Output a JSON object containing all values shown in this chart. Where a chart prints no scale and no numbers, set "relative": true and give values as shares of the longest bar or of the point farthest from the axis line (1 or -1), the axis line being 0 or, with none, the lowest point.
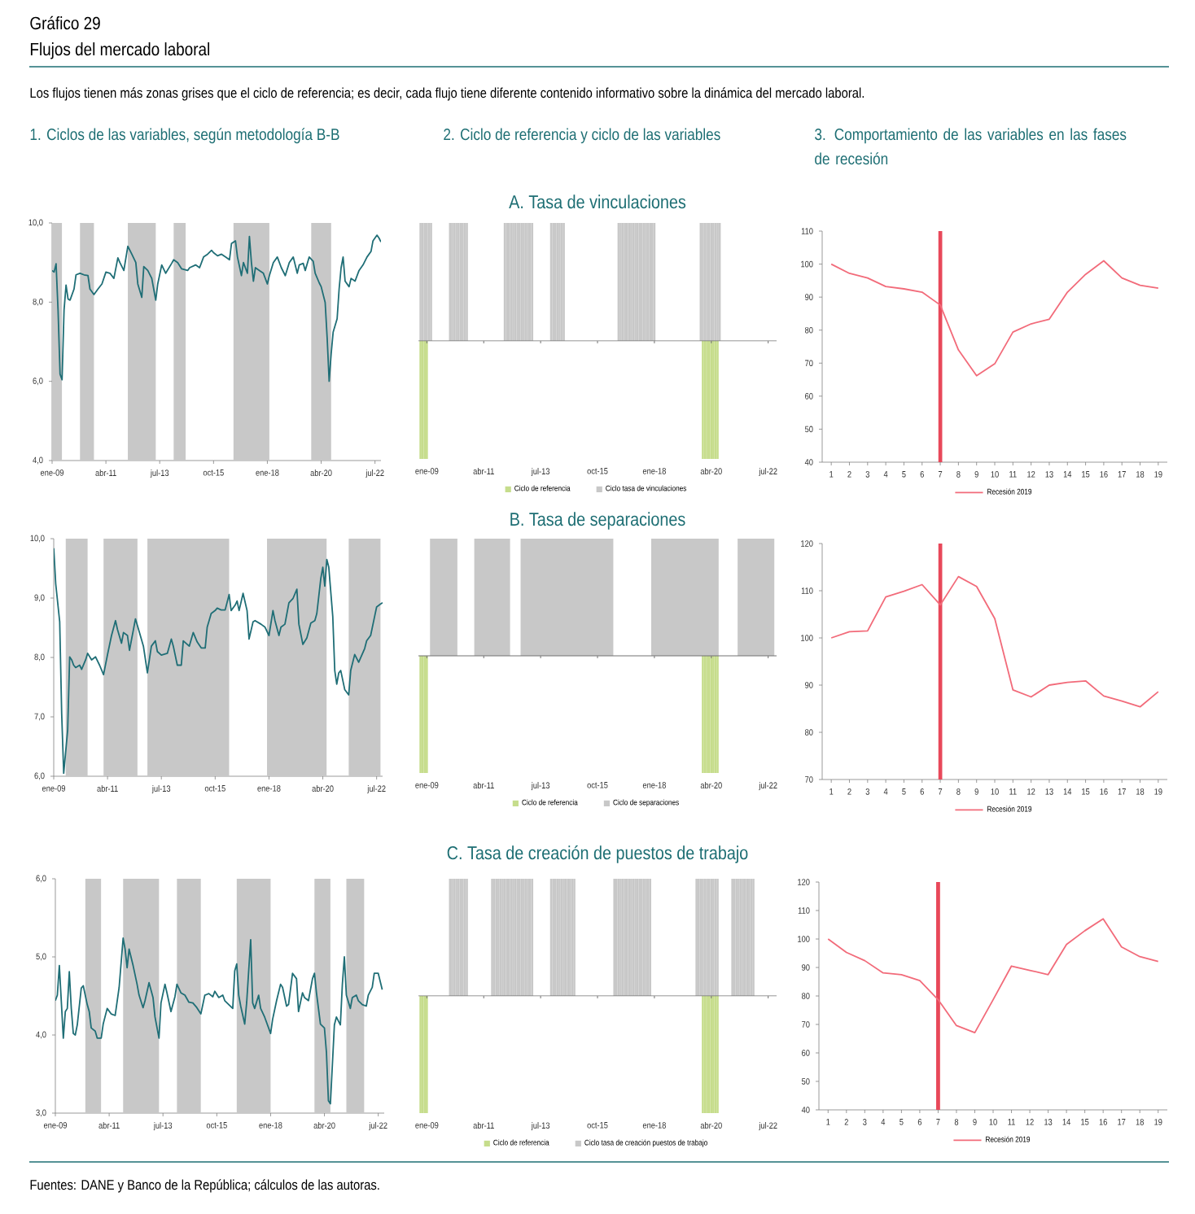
{
  "chart_data": [
    {
      "type": "other",
      "title": "Gráfico 29",
      "subtitle": "Flujos del mercado laboral",
      "annotations": [
        "Los flujos tienen más zonas grises que el ciclo de referencia; es decir, cada flujo tiene diferente contenido informativo sobre la dinámica del mercado laboral.",
        "Fuentes: DANE y Banco de la República; cálculos de las autoras."
      ]
    },
    {
      "type": "line",
      "title": "1. Ciclos de las variables, según metodología B-B",
      "color": "#1f6e76",
      "xlim": [
        "2009-01",
        "2022-10"
      ],
      "ylim": [
        4,
        10
      ],
      "xticks": [
        {
          "value": "2009-01",
          "label": "ene-09"
        },
        {
          "value": "2011-04",
          "label": "abr-11"
        },
        {
          "value": "2013-07",
          "label": "jul-13"
        },
        {
          "value": "2015-10",
          "label": "oct-15"
        },
        {
          "value": "2018-01",
          "label": "ene-18"
        },
        {
          "value": "2020-04",
          "label": "abr-20"
        },
        {
          "value": "2022-07",
          "label": "jul-22"
        }
      ],
      "yticks": [
        {
          "value": 4,
          "label": "4,0"
        },
        {
          "value": 6,
          "label": "6,0"
        },
        {
          "value": 8,
          "label": "8,0"
        },
        {
          "value": 10,
          "label": "10,0"
        }
      ],
      "bands": [
        {
          "axis": "x",
          "from": "2009-01",
          "to": "2009-06",
          "color": "#c8c8c8"
        },
        {
          "axis": "x",
          "from": "2010-03",
          "to": "2010-10",
          "color": "#c8c8c8"
        },
        {
          "axis": "x",
          "from": "2012-03",
          "to": "2013-05",
          "color": "#c8c8c8"
        },
        {
          "axis": "x",
          "from": "2014-02",
          "to": "2014-08",
          "color": "#c8c8c8"
        },
        {
          "axis": "x",
          "from": "2016-08",
          "to": "2018-02",
          "color": "#c8c8c8"
        },
        {
          "axis": "x",
          "from": "2019-11",
          "to": "2020-09",
          "color": "#c8c8c8"
        }
      ],
      "x": [
        "2009-01",
        "2009-02",
        "2009-03",
        "2009-04",
        "2009-05",
        "2009-06",
        "2009-07",
        "2009-08",
        "2009-09",
        "2009-10",
        "2009-12",
        "2010-01",
        "2010-03",
        "2010-05",
        "2010-07",
        "2010-08",
        "2010-10",
        "2010-12",
        "2011-02",
        "2011-04",
        "2011-06",
        "2011-08",
        "2011-10",
        "2011-11",
        "2012-01",
        "2012-03",
        "2012-05",
        "2012-07",
        "2012-08",
        "2012-10",
        "2012-11",
        "2013-01",
        "2013-03",
        "2013-05",
        "2013-06",
        "2013-08",
        "2013-10",
        "2014-01",
        "2014-02",
        "2014-04",
        "2014-06",
        "2014-09",
        "2014-10",
        "2015-01",
        "2015-03",
        "2015-05",
        "2015-07",
        "2015-09",
        "2015-10",
        "2015-12",
        "2016-02",
        "2016-04",
        "2016-06",
        "2016-07",
        "2016-09",
        "2016-10",
        "2016-12",
        "2017-01",
        "2017-03",
        "2017-04",
        "2017-05",
        "2017-06",
        "2017-07",
        "2017-09",
        "2017-11",
        "2018-01",
        "2018-02",
        "2018-04",
        "2018-06",
        "2018-08",
        "2018-10",
        "2018-12",
        "2019-02",
        "2019-04",
        "2019-05",
        "2019-07",
        "2019-08",
        "2019-10",
        "2019-12",
        "2020-01",
        "2020-03",
        "2020-04",
        "2020-06",
        "2020-07",
        "2020-08",
        "2020-09",
        "2020-10",
        "2020-12",
        "2021-01",
        "2021-02",
        "2021-03",
        "2021-04",
        "2021-06",
        "2021-07",
        "2021-09",
        "2021-11",
        "2022-01",
        "2022-03",
        "2022-05",
        "2022-06",
        "2022-08",
        "2022-09",
        "2022-10"
      ],
      "values": [
        8.8,
        8.76,
        8.97,
        7.78,
        6.18,
        6.04,
        7.8,
        8.43,
        8.08,
        8.05,
        8.33,
        8.69,
        8.73,
        8.69,
        8.67,
        8.33,
        8.19,
        8.33,
        8.46,
        8.76,
        8.73,
        8.6,
        9.12,
        9.0,
        8.8,
        9.41,
        9.21,
        9.0,
        8.46,
        8.12,
        8.9,
        8.8,
        8.6,
        8.05,
        8.46,
        8.94,
        8.73,
        8.98,
        9.07,
        9.0,
        8.84,
        8.8,
        8.87,
        8.94,
        8.87,
        9.14,
        9.21,
        9.31,
        9.25,
        9.17,
        9.21,
        9.14,
        9.07,
        9.48,
        9.55,
        9.14,
        8.67,
        9.0,
        8.73,
        9.66,
        9.0,
        8.53,
        8.87,
        8.8,
        8.73,
        8.46,
        8.67,
        9.0,
        9.14,
        8.87,
        8.67,
        9.0,
        9.14,
        8.73,
        8.94,
        8.98,
        8.8,
        9.14,
        9.03,
        8.73,
        8.49,
        8.39,
        7.99,
        7.1,
        6.0,
        6.69,
        7.24,
        7.58,
        8.33,
        8.87,
        9.14,
        8.53,
        8.39,
        8.6,
        8.53,
        8.8,
        8.94,
        9.14,
        9.28,
        9.55,
        9.69,
        9.62,
        9.52
      ]
    },
    {
      "type": "bar",
      "title": "2. Ciclo de referencia y ciclo de las variables",
      "subtitle": "A. Tasa de vinculaciones",
      "relative": true,
      "legend": "bottom",
      "xlim": [
        "2008-09",
        "2022-11"
      ],
      "xticks": [
        {
          "value": "2009-01",
          "label": "ene-09"
        },
        {
          "value": "2011-04",
          "label": "abr-11"
        },
        {
          "value": "2013-07",
          "label": "jul-13"
        },
        {
          "value": "2015-10",
          "label": "oct-15"
        },
        {
          "value": "2018-01",
          "label": "ene-18"
        },
        {
          "value": "2020-04",
          "label": "abr-20"
        },
        {
          "value": "2022-07",
          "label": "jul-22"
        }
      ],
      "series": [
        {
          "name": "Ciclo de referencia",
          "color": "#c6dd8c",
          "x": [
            "2008-10",
            "2008-11",
            "2008-12",
            "2009-01",
            "2019-12",
            "2020-01",
            "2020-02",
            "2020-03",
            "2020-04",
            "2020-05",
            "2020-06",
            "2020-07"
          ],
          "values": [
            -1,
            -1,
            -1,
            -1,
            -1,
            -1,
            -1,
            -1,
            -1,
            -1,
            -1,
            -1
          ]
        },
        {
          "name": "Ciclo tasa de vinculaciones",
          "color": "#c8c8c8",
          "x": [
            "2008-10",
            "2008-11",
            "2008-12",
            "2009-01",
            "2009-02",
            "2009-03",
            "2009-12",
            "2010-01",
            "2010-02",
            "2010-03",
            "2010-04",
            "2010-05",
            "2010-06",
            "2010-07",
            "2010-08",
            "2012-02",
            "2012-03",
            "2012-04",
            "2012-05",
            "2012-06",
            "2012-07",
            "2012-08",
            "2012-09",
            "2012-10",
            "2012-11",
            "2012-12",
            "2013-01",
            "2013-02",
            "2013-03",
            "2013-12",
            "2014-01",
            "2014-02",
            "2014-03",
            "2014-04",
            "2014-05",
            "2014-06",
            "2016-08",
            "2016-09",
            "2016-10",
            "2016-11",
            "2016-12",
            "2017-01",
            "2017-02",
            "2017-03",
            "2017-04",
            "2017-05",
            "2017-06",
            "2017-07",
            "2017-08",
            "2017-09",
            "2017-10",
            "2017-11",
            "2017-12",
            "2018-01",
            "2019-11",
            "2019-12",
            "2020-01",
            "2020-02",
            "2020-03",
            "2020-04",
            "2020-05",
            "2020-06",
            "2020-07",
            "2020-08"
          ],
          "values": [
            1,
            1,
            1,
            1,
            1,
            1,
            1,
            1,
            1,
            1,
            1,
            1,
            1,
            1,
            1,
            1,
            1,
            1,
            1,
            1,
            1,
            1,
            1,
            1,
            1,
            1,
            1,
            1,
            1,
            1,
            1,
            1,
            1,
            1,
            1,
            1,
            1,
            1,
            1,
            1,
            1,
            1,
            1,
            1,
            1,
            1,
            1,
            1,
            1,
            1,
            1,
            1,
            1,
            1,
            1,
            1,
            1,
            1,
            1,
            1,
            1,
            1,
            1,
            1
          ]
        }
      ]
    },
    {
      "type": "line",
      "title": "3. Comportamiento de las variables en las fases de recesión",
      "legend": "bottom",
      "x": [
        1,
        2,
        3,
        4,
        5,
        6,
        7,
        8,
        9,
        10,
        11,
        12,
        13,
        14,
        15,
        16,
        17,
        18,
        19
      ],
      "xlim": [
        0.5,
        19.5
      ],
      "xticks": [
        1,
        2,
        3,
        4,
        5,
        6,
        7,
        8,
        9,
        10,
        11,
        12,
        13,
        14,
        15,
        16,
        17,
        18,
        19
      ],
      "ylim": [
        40,
        110
      ],
      "yticks": [
        40,
        50,
        60,
        70,
        80,
        90,
        100,
        110
      ],
      "ref_lines": [
        {
          "axis": "x",
          "value": 7,
          "color": "#e8485a"
        }
      ],
      "series": [
        {
          "name": "Recesión 2019",
          "color": "#f26b7a",
          "values": [
            100,
            97.2,
            95.8,
            93.2,
            92.5,
            91.5,
            87.6,
            74.0,
            66.2,
            69.8,
            79.4,
            81.9,
            83.3,
            91.5,
            96.9,
            101.0,
            95.8,
            93.6,
            92.7
          ]
        }
      ]
    },
    {
      "type": "line",
      "color": "#1f6e76",
      "xlim": [
        "2009-01",
        "2022-10"
      ],
      "ylim": [
        6,
        10
      ],
      "xticks": [
        {
          "value": "2009-01",
          "label": "ene-09"
        },
        {
          "value": "2011-04",
          "label": "abr-11"
        },
        {
          "value": "2013-07",
          "label": "jul-13"
        },
        {
          "value": "2015-10",
          "label": "oct-15"
        },
        {
          "value": "2018-01",
          "label": "ene-18"
        },
        {
          "value": "2020-04",
          "label": "abr-20"
        },
        {
          "value": "2022-07",
          "label": "jul-22"
        }
      ],
      "yticks": [
        {
          "value": 6,
          "label": "6,0"
        },
        {
          "value": 7,
          "label": "7,0"
        },
        {
          "value": 8,
          "label": "8,0"
        },
        {
          "value": 9,
          "label": "9,0"
        },
        {
          "value": 10,
          "label": "10,0"
        }
      ],
      "bands": [
        {
          "axis": "x",
          "from": "2009-07",
          "to": "2010-06",
          "color": "#c8c8c8"
        },
        {
          "axis": "x",
          "from": "2011-02",
          "to": "2012-07",
          "color": "#c8c8c8"
        },
        {
          "axis": "x",
          "from": "2012-12",
          "to": "2016-05",
          "color": "#c8c8c8"
        },
        {
          "axis": "x",
          "from": "2017-12",
          "to": "2020-06",
          "color": "#c8c8c8"
        },
        {
          "axis": "x",
          "from": "2021-05",
          "to": "2022-09",
          "color": "#c8c8c8"
        }
      ],
      "x": [
        "2009-01",
        "2009-02",
        "2009-04",
        "2009-05",
        "2009-06",
        "2009-08",
        "2009-09",
        "2009-10",
        "2009-11",
        "2009-12",
        "2010-02",
        "2010-03",
        "2010-05",
        "2010-06",
        "2010-08",
        "2010-10",
        "2010-12",
        "2011-02",
        "2011-04",
        "2011-06",
        "2011-08",
        "2011-09",
        "2011-11",
        "2011-12",
        "2012-02",
        "2012-03",
        "2012-05",
        "2012-06",
        "2012-08",
        "2012-10",
        "2012-12",
        "2013-02",
        "2013-04",
        "2013-05",
        "2013-07",
        "2013-10",
        "2013-12",
        "2014-01",
        "2014-03",
        "2014-05",
        "2014-06",
        "2014-09",
        "2014-11",
        "2015-01",
        "2015-03",
        "2015-05",
        "2015-06",
        "2015-08",
        "2015-10",
        "2015-11",
        "2016-01",
        "2016-03",
        "2016-05",
        "2016-06",
        "2016-08",
        "2016-09",
        "2016-10",
        "2016-12",
        "2017-02",
        "2017-03",
        "2017-05",
        "2017-06",
        "2017-09",
        "2017-11",
        "2018-01",
        "2018-03",
        "2018-04",
        "2018-06",
        "2018-07",
        "2018-09",
        "2018-11",
        "2019-01",
        "2019-03",
        "2019-04",
        "2019-06",
        "2019-08",
        "2019-10",
        "2019-12",
        "2020-01",
        "2020-03",
        "2020-04",
        "2020-05",
        "2020-06",
        "2020-07",
        "2020-09",
        "2020-10",
        "2020-11",
        "2020-12",
        "2021-01",
        "2021-03",
        "2021-05",
        "2021-06",
        "2021-08",
        "2021-10",
        "2022-01",
        "2022-02",
        "2022-04",
        "2022-06",
        "2022-07",
        "2022-09",
        "2022-10"
      ],
      "values": [
        9.84,
        9.24,
        8.6,
        7.05,
        6.05,
        6.78,
        8.01,
        7.96,
        7.87,
        7.83,
        7.87,
        7.8,
        7.96,
        8.07,
        7.96,
        8.01,
        7.87,
        7.71,
        8.05,
        8.37,
        8.62,
        8.47,
        8.24,
        8.42,
        8.37,
        8.12,
        8.47,
        8.65,
        8.42,
        8.19,
        7.74,
        8.19,
        8.28,
        8.1,
        8.04,
        8.07,
        8.31,
        8.19,
        7.87,
        7.87,
        8.28,
        8.19,
        8.42,
        8.26,
        8.16,
        8.16,
        8.51,
        8.74,
        8.79,
        8.83,
        8.8,
        8.8,
        9.06,
        8.79,
        8.88,
        8.95,
        8.79,
        9.08,
        8.79,
        8.31,
        8.6,
        8.62,
        8.56,
        8.51,
        8.37,
        8.79,
        8.62,
        8.37,
        8.51,
        8.56,
        8.92,
        8.99,
        9.15,
        8.56,
        8.22,
        8.33,
        8.58,
        8.62,
        8.74,
        9.33,
        9.52,
        9.2,
        9.65,
        9.52,
        8.69,
        7.78,
        7.55,
        7.74,
        7.78,
        7.46,
        7.37,
        7.78,
        8.05,
        7.92,
        8.15,
        8.28,
        8.37,
        8.69,
        8.85,
        8.9,
        8.92
      ]
    },
    {
      "type": "bar",
      "title": "B. Tasa de separaciones",
      "relative": true,
      "legend": "bottom",
      "xlim": [
        "2008-09",
        "2022-11"
      ],
      "xticks": [
        {
          "value": "2009-01",
          "label": "ene-09"
        },
        {
          "value": "2011-04",
          "label": "abr-11"
        },
        {
          "value": "2013-07",
          "label": "jul-13"
        },
        {
          "value": "2015-10",
          "label": "oct-15"
        },
        {
          "value": "2018-01",
          "label": "ene-18"
        },
        {
          "value": "2020-04",
          "label": "abr-20"
        },
        {
          "value": "2022-07",
          "label": "jul-22"
        }
      ],
      "series": [
        {
          "name": "Ciclo de referencia",
          "color": "#c6dd8c",
          "x": [
            "2008-10",
            "2008-11",
            "2008-12",
            "2009-01",
            "2019-12",
            "2020-01",
            "2020-02",
            "2020-03",
            "2020-04",
            "2020-05",
            "2020-06",
            "2020-07"
          ],
          "values": [
            -1,
            -1,
            -1,
            -1,
            -1,
            -1,
            -1,
            -1,
            -1,
            -1,
            -1,
            -1
          ]
        },
        {
          "type": "area",
          "name": "Ciclo de separaciones",
          "color": "#c8c8c8",
          "x": [
            "2008-10",
            "2008-11",
            "2008-12",
            "2009-01",
            "2009-02",
            "2009-03",
            "2009-04",
            "2009-05",
            "2009-06",
            "2009-07",
            "2009-08",
            "2009-09",
            "2009-10",
            "2009-11",
            "2009-12",
            "2010-01",
            "2010-02",
            "2010-03",
            "2010-04",
            "2010-05",
            "2010-06",
            "2010-07",
            "2010-08",
            "2010-09",
            "2010-10",
            "2010-11",
            "2010-12",
            "2011-01",
            "2011-02",
            "2011-03",
            "2011-04",
            "2011-05",
            "2011-06",
            "2011-07",
            "2011-08",
            "2011-09",
            "2011-10",
            "2011-11",
            "2011-12",
            "2012-01",
            "2012-02",
            "2012-03",
            "2012-04",
            "2012-05",
            "2012-06",
            "2012-07",
            "2012-08",
            "2012-09",
            "2012-10",
            "2012-11",
            "2012-12",
            "2013-01",
            "2013-02",
            "2013-03",
            "2013-04",
            "2013-05",
            "2013-06",
            "2013-07",
            "2013-08",
            "2013-09",
            "2013-10",
            "2013-11",
            "2013-12",
            "2014-01",
            "2014-02",
            "2014-03",
            "2014-04",
            "2014-05",
            "2014-06",
            "2014-07",
            "2014-08",
            "2014-09",
            "2014-10",
            "2014-11",
            "2014-12",
            "2015-01",
            "2015-02",
            "2015-03",
            "2015-04",
            "2015-05",
            "2015-06",
            "2015-07",
            "2015-08",
            "2015-09",
            "2015-10",
            "2015-11",
            "2015-12",
            "2016-01",
            "2016-02",
            "2016-03",
            "2016-04",
            "2016-05",
            "2016-06",
            "2016-07",
            "2016-08",
            "2016-09",
            "2016-10",
            "2016-11",
            "2016-12",
            "2017-01",
            "2017-02",
            "2017-03",
            "2017-04",
            "2017-05",
            "2017-06",
            "2017-07",
            "2017-08",
            "2017-09",
            "2017-10",
            "2017-11",
            "2017-12",
            "2018-01",
            "2018-02",
            "2018-03",
            "2018-04",
            "2018-05",
            "2018-06",
            "2018-07",
            "2018-08",
            "2018-09",
            "2018-10",
            "2018-11",
            "2018-12",
            "2019-01",
            "2019-02",
            "2019-03",
            "2019-04",
            "2019-05",
            "2019-06",
            "2019-07",
            "2019-08",
            "2019-09",
            "2019-10",
            "2019-11",
            "2019-12",
            "2020-01",
            "2020-02",
            "2020-03",
            "2020-04",
            "2020-05",
            "2020-06",
            "2020-07",
            "2020-08",
            "2020-09",
            "2020-10",
            "2020-11",
            "2020-12",
            "2021-01",
            "2021-02",
            "2021-03",
            "2021-04",
            "2021-05",
            "2021-06",
            "2021-07",
            "2021-08",
            "2021-09",
            "2021-10",
            "2021-11",
            "2021-12",
            "2022-01",
            "2022-02",
            "2022-03",
            "2022-04",
            "2022-05",
            "2022-06",
            "2022-07",
            "2022-08",
            "2022-09",
            "2022-10"
          ],
          "values": [
            0,
            0,
            0,
            0,
            0,
            1,
            1,
            1,
            1,
            1,
            1,
            1,
            1,
            1,
            1,
            1,
            1,
            1,
            0,
            0,
            0,
            0,
            0,
            0,
            0,
            0,
            1,
            1,
            1,
            1,
            1,
            1,
            1,
            1,
            1,
            1,
            1,
            1,
            1,
            1,
            1,
            1,
            1,
            0,
            0,
            0,
            0,
            0,
            1,
            1,
            1,
            1,
            1,
            1,
            1,
            1,
            1,
            1,
            1,
            1,
            1,
            1,
            1,
            1,
            1,
            1,
            1,
            1,
            1,
            1,
            1,
            1,
            1,
            1,
            1,
            1,
            1,
            1,
            1,
            1,
            1,
            1,
            1,
            1,
            1,
            1,
            1,
            1,
            1,
            1,
            1,
            1,
            0,
            0,
            0,
            0,
            0,
            0,
            0,
            0,
            0,
            0,
            0,
            0,
            0,
            0,
            0,
            0,
            0,
            0,
            1,
            1,
            1,
            1,
            1,
            1,
            1,
            1,
            1,
            1,
            1,
            1,
            1,
            1,
            1,
            1,
            1,
            1,
            1,
            1,
            1,
            1,
            1,
            1,
            1,
            1,
            1,
            1,
            1,
            1,
            1,
            1,
            0,
            0,
            0,
            0,
            0,
            0,
            0,
            0,
            0,
            1,
            1,
            1,
            1,
            1,
            1,
            1,
            1,
            1,
            1,
            1,
            1,
            1,
            1,
            1,
            1,
            1,
            1
          ]
        }
      ]
    },
    {
      "type": "line",
      "legend": "bottom",
      "x": [
        1,
        2,
        3,
        4,
        5,
        6,
        7,
        8,
        9,
        10,
        11,
        12,
        13,
        14,
        15,
        16,
        17,
        18,
        19
      ],
      "xlim": [
        0.5,
        19.5
      ],
      "xticks": [
        1,
        2,
        3,
        4,
        5,
        6,
        7,
        8,
        9,
        10,
        11,
        12,
        13,
        14,
        15,
        16,
        17,
        18,
        19
      ],
      "ylim": [
        70,
        120
      ],
      "yticks": [
        70,
        80,
        90,
        100,
        110,
        120
      ],
      "ref_lines": [
        {
          "axis": "x",
          "value": 7,
          "color": "#e8485a"
        }
      ],
      "series": [
        {
          "name": "Recesión 2019",
          "color": "#f26b7a",
          "values": [
            100,
            101.3,
            101.5,
            108.7,
            109.9,
            111.3,
            107.0,
            113.0,
            110.9,
            104.1,
            89.0,
            87.5,
            90.0,
            90.6,
            90.9,
            87.7,
            86.6,
            85.4,
            88.6
          ]
        }
      ]
    },
    {
      "type": "line",
      "color": "#1f6e76",
      "xlim": [
        "2009-01",
        "2022-10"
      ],
      "ylim": [
        3,
        6
      ],
      "xticks": [
        {
          "value": "2009-01",
          "label": "ene-09"
        },
        {
          "value": "2011-04",
          "label": "abr-11"
        },
        {
          "value": "2013-07",
          "label": "jul-13"
        },
        {
          "value": "2015-10",
          "label": "oct-15"
        },
        {
          "value": "2018-01",
          "label": "ene-18"
        },
        {
          "value": "2020-04",
          "label": "abr-20"
        },
        {
          "value": "2022-07",
          "label": "jul-22"
        }
      ],
      "yticks": [
        {
          "value": 3,
          "label": "3,0"
        },
        {
          "value": 4,
          "label": "4,0"
        },
        {
          "value": 5,
          "label": "5,0"
        },
        {
          "value": 6,
          "label": "6,0"
        }
      ],
      "bands": [
        {
          "axis": "x",
          "from": "2010-04",
          "to": "2010-12",
          "color": "#c8c8c8"
        },
        {
          "axis": "x",
          "from": "2011-11",
          "to": "2013-05",
          "color": "#c8c8c8"
        },
        {
          "axis": "x",
          "from": "2014-02",
          "to": "2015-02",
          "color": "#c8c8c8"
        },
        {
          "axis": "x",
          "from": "2016-08",
          "to": "2018-01",
          "color": "#c8c8c8"
        },
        {
          "axis": "x",
          "from": "2019-11",
          "to": "2020-07",
          "color": "#c8c8c8"
        },
        {
          "axis": "x",
          "from": "2021-03",
          "to": "2021-12",
          "color": "#c8c8c8"
        }
      ],
      "x": [
        "2009-01",
        "2009-02",
        "2009-03",
        "2009-05",
        "2009-06",
        "2009-07",
        "2009-08",
        "2009-09",
        "2009-10",
        "2009-11",
        "2009-12",
        "2010-02",
        "2010-03",
        "2010-05",
        "2010-06",
        "2010-07",
        "2010-09",
        "2010-10",
        "2010-12",
        "2011-01",
        "2011-03",
        "2011-05",
        "2011-07",
        "2011-09",
        "2011-11",
        "2011-12",
        "2012-01",
        "2012-02",
        "2012-04",
        "2012-06",
        "2012-07",
        "2012-09",
        "2012-10",
        "2012-12",
        "2013-02",
        "2013-03",
        "2013-05",
        "2013-06",
        "2013-08",
        "2013-09",
        "2013-11",
        "2014-01",
        "2014-02",
        "2014-04",
        "2014-06",
        "2014-08",
        "2014-10",
        "2014-12",
        "2015-02",
        "2015-04",
        "2015-06",
        "2015-08",
        "2015-09",
        "2015-11",
        "2016-01",
        "2016-02",
        "2016-04",
        "2016-06",
        "2016-07",
        "2016-08",
        "2016-09",
        "2016-10",
        "2016-12",
        "2017-01",
        "2017-03",
        "2017-04",
        "2017-05",
        "2017-07",
        "2017-08",
        "2017-10",
        "2018-01",
        "2018-02",
        "2018-04",
        "2018-06",
        "2018-07",
        "2018-09",
        "2018-10",
        "2018-12",
        "2019-02",
        "2019-03",
        "2019-05",
        "2019-06",
        "2019-08",
        "2019-10",
        "2019-11",
        "2019-12",
        "2020-02",
        "2020-04",
        "2020-05",
        "2020-06",
        "2020-07",
        "2020-09",
        "2020-10",
        "2020-12",
        "2021-01",
        "2021-02",
        "2021-03",
        "2021-05",
        "2021-06",
        "2021-08",
        "2021-09",
        "2021-11",
        "2022-01",
        "2022-02",
        "2022-04",
        "2022-05",
        "2022-07",
        "2022-09"
      ],
      "values": [
        4.44,
        4.51,
        4.89,
        3.96,
        4.3,
        4.34,
        4.81,
        4.34,
        4.02,
        4.0,
        4.13,
        4.6,
        4.63,
        4.39,
        4.3,
        4.09,
        4.05,
        3.96,
        3.96,
        4.14,
        4.34,
        4.27,
        4.25,
        4.61,
        5.24,
        5.1,
        4.86,
        5.1,
        4.89,
        4.65,
        4.51,
        4.35,
        4.44,
        4.67,
        4.48,
        4.23,
        3.96,
        4.41,
        4.65,
        4.54,
        4.3,
        4.49,
        4.65,
        4.54,
        4.51,
        4.42,
        4.41,
        4.35,
        4.27,
        4.51,
        4.53,
        4.49,
        4.56,
        4.48,
        4.51,
        4.44,
        4.39,
        4.34,
        4.82,
        4.91,
        4.51,
        4.37,
        4.14,
        4.42,
        5.22,
        4.41,
        4.34,
        4.51,
        4.34,
        4.23,
        4.02,
        4.2,
        4.44,
        4.65,
        4.61,
        4.37,
        4.39,
        4.79,
        4.72,
        4.3,
        4.54,
        4.48,
        4.44,
        4.72,
        4.79,
        4.54,
        4.14,
        4.09,
        3.78,
        3.16,
        3.12,
        4.13,
        4.23,
        4.13,
        4.65,
        5.0,
        4.51,
        4.34,
        4.48,
        4.51,
        4.44,
        4.39,
        4.37,
        4.51,
        4.61,
        4.79,
        4.79,
        4.58
      ]
    },
    {
      "type": "bar",
      "title": "C. Tasa de creación de puestos de trabajo",
      "relative": true,
      "legend": "bottom",
      "xlim": [
        "2008-09",
        "2022-11"
      ],
      "xticks": [
        {
          "value": "2009-01",
          "label": "ene-09"
        },
        {
          "value": "2011-04",
          "label": "abr-11"
        },
        {
          "value": "2013-07",
          "label": "jul-13"
        },
        {
          "value": "2015-10",
          "label": "oct-15"
        },
        {
          "value": "2018-01",
          "label": "ene-18"
        },
        {
          "value": "2020-04",
          "label": "abr-20"
        },
        {
          "value": "2022-07",
          "label": "jul-22"
        }
      ],
      "series": [
        {
          "name": "Ciclo de referencia",
          "color": "#c6dd8c",
          "x": [
            "2008-10",
            "2008-11",
            "2008-12",
            "2009-01",
            "2019-12",
            "2020-01",
            "2020-02",
            "2020-03",
            "2020-04",
            "2020-05",
            "2020-06",
            "2020-07"
          ],
          "values": [
            -1,
            -1,
            -1,
            -1,
            -1,
            -1,
            -1,
            -1,
            -1,
            -1,
            -1,
            -1
          ]
        },
        {
          "name": "Ciclo tasa de creación puestos de trabajo",
          "color": "#c8c8c8",
          "x": [
            "2009-12",
            "2010-01",
            "2010-02",
            "2010-03",
            "2010-04",
            "2010-05",
            "2010-06",
            "2010-07",
            "2010-08",
            "2011-08",
            "2011-09",
            "2011-10",
            "2011-11",
            "2011-12",
            "2012-01",
            "2012-02",
            "2012-03",
            "2012-04",
            "2012-05",
            "2012-06",
            "2012-07",
            "2012-08",
            "2012-09",
            "2012-10",
            "2012-11",
            "2012-12",
            "2013-01",
            "2013-02",
            "2013-03",
            "2013-12",
            "2014-01",
            "2014-02",
            "2014-03",
            "2014-04",
            "2014-05",
            "2014-06",
            "2014-07",
            "2014-08",
            "2014-09",
            "2014-10",
            "2014-11",
            "2016-06",
            "2016-07",
            "2016-08",
            "2016-09",
            "2016-10",
            "2016-11",
            "2016-12",
            "2017-01",
            "2017-02",
            "2017-03",
            "2017-04",
            "2017-05",
            "2017-06",
            "2017-07",
            "2017-08",
            "2017-09",
            "2017-10",
            "2017-11",
            "2019-09",
            "2019-10",
            "2019-11",
            "2019-12",
            "2020-01",
            "2020-02",
            "2020-03",
            "2020-04",
            "2020-05",
            "2020-06",
            "2020-07",
            "2021-02",
            "2021-03",
            "2021-04",
            "2021-05",
            "2021-06",
            "2021-07",
            "2021-08",
            "2021-09",
            "2021-10",
            "2021-11",
            "2021-12"
          ],
          "values": [
            1,
            1,
            1,
            1,
            1,
            1,
            1,
            1,
            1,
            1,
            1,
            1,
            1,
            1,
            1,
            1,
            1,
            1,
            1,
            1,
            1,
            1,
            1,
            1,
            1,
            1,
            1,
            1,
            1,
            1,
            1,
            1,
            1,
            1,
            1,
            1,
            1,
            1,
            1,
            1,
            1,
            1,
            1,
            1,
            1,
            1,
            1,
            1,
            1,
            1,
            1,
            1,
            1,
            1,
            1,
            1,
            1,
            1,
            1,
            1,
            1,
            1,
            1,
            1,
            1,
            1,
            1,
            1,
            1,
            1,
            1,
            1,
            1,
            1,
            1,
            1,
            1,
            1,
            1,
            1,
            1
          ]
        }
      ]
    },
    {
      "type": "line",
      "legend": "bottom",
      "x": [
        1,
        2,
        3,
        4,
        5,
        6,
        7,
        8,
        9,
        10,
        11,
        12,
        13,
        14,
        15,
        16,
        17,
        18,
        19
      ],
      "xlim": [
        0.5,
        19.5
      ],
      "xticks": [
        1,
        2,
        3,
        4,
        5,
        6,
        7,
        8,
        9,
        10,
        11,
        12,
        13,
        14,
        15,
        16,
        17,
        18,
        19
      ],
      "ylim": [
        40,
        120
      ],
      "yticks": [
        40,
        50,
        60,
        70,
        80,
        90,
        100,
        110,
        120
      ],
      "ref_lines": [
        {
          "axis": "x",
          "value": 7,
          "color": "#e8485a"
        }
      ],
      "series": [
        {
          "name": "Recesión 2019",
          "color": "#f26b7a",
          "values": [
            100,
            95.3,
            92.4,
            88.1,
            87.5,
            85.4,
            78.7,
            69.6,
            67.1,
            78.7,
            90.5,
            89.0,
            87.5,
            98.1,
            102.9,
            107.1,
            97.2,
            93.8,
            92.1
          ]
        }
      ]
    }
  ]
}
